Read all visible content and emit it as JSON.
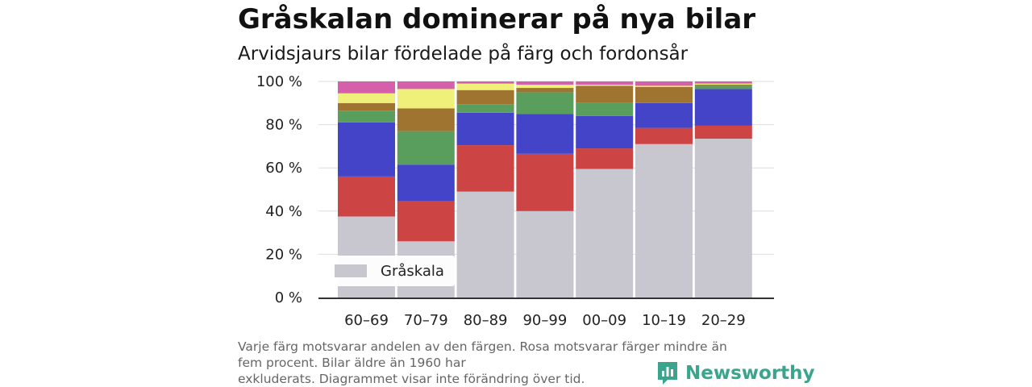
{
  "header": {
    "title": "Gråskalan dominerar på nya bilar",
    "subtitle": "Arvidsjaurs bilar fördelade på färg och fordonsår"
  },
  "footer": {
    "note_line1": "Varje färg motsvarar andelen av den färgen. Rosa motsvarar färger mindre än",
    "note_line2": "fem procent. Bilar äldre än 1960 har",
    "note_line3": "exkluderats. Diagrammet visar inte förändring över tid.",
    "brand": "Newsworthy",
    "brand_icon": "newsworthy-logo-icon",
    "brand_color": "#3aa58c"
  },
  "chart_data": {
    "type": "bar",
    "stacked": true,
    "normalized_percent": true,
    "categories": [
      "60–69",
      "70–79",
      "80–89",
      "90–99",
      "00–09",
      "10–19",
      "20–29"
    ],
    "y_ticks": [
      "0 %",
      "20 %",
      "40 %",
      "60 %",
      "80 %",
      "100 %"
    ],
    "ylim": [
      0,
      100
    ],
    "grid": "horizontal",
    "legend": {
      "position": "bottom-left",
      "entries": [
        "Gråskala"
      ]
    },
    "series": [
      {
        "name": "Gråskala",
        "color": "#c8c7cf",
        "values": [
          37.5,
          26.0,
          49.0,
          40.0,
          59.5,
          71.0,
          73.5
        ]
      },
      {
        "color": "#cc4444",
        "values": [
          18.5,
          18.5,
          21.5,
          26.5,
          9.5,
          7.5,
          6.0
        ]
      },
      {
        "color": "#4444c8",
        "values": [
          25.0,
          17.0,
          15.0,
          18.5,
          15.0,
          11.5,
          17.0
        ]
      },
      {
        "color": "#5a9e5e",
        "values": [
          5.5,
          15.5,
          4.0,
          10.0,
          6.0,
          0.0,
          1.5
        ]
      },
      {
        "color": "#9e7430",
        "values": [
          3.5,
          10.5,
          6.5,
          2.0,
          8.0,
          7.5,
          0.5
        ]
      },
      {
        "color": "#eef07a",
        "values": [
          4.5,
          9.0,
          3.0,
          1.5,
          0.5,
          0.5,
          0.5
        ]
      },
      {
        "color": "#d65fac",
        "values": [
          5.5,
          3.5,
          1.0,
          1.5,
          1.5,
          2.0,
          1.0
        ]
      }
    ]
  }
}
